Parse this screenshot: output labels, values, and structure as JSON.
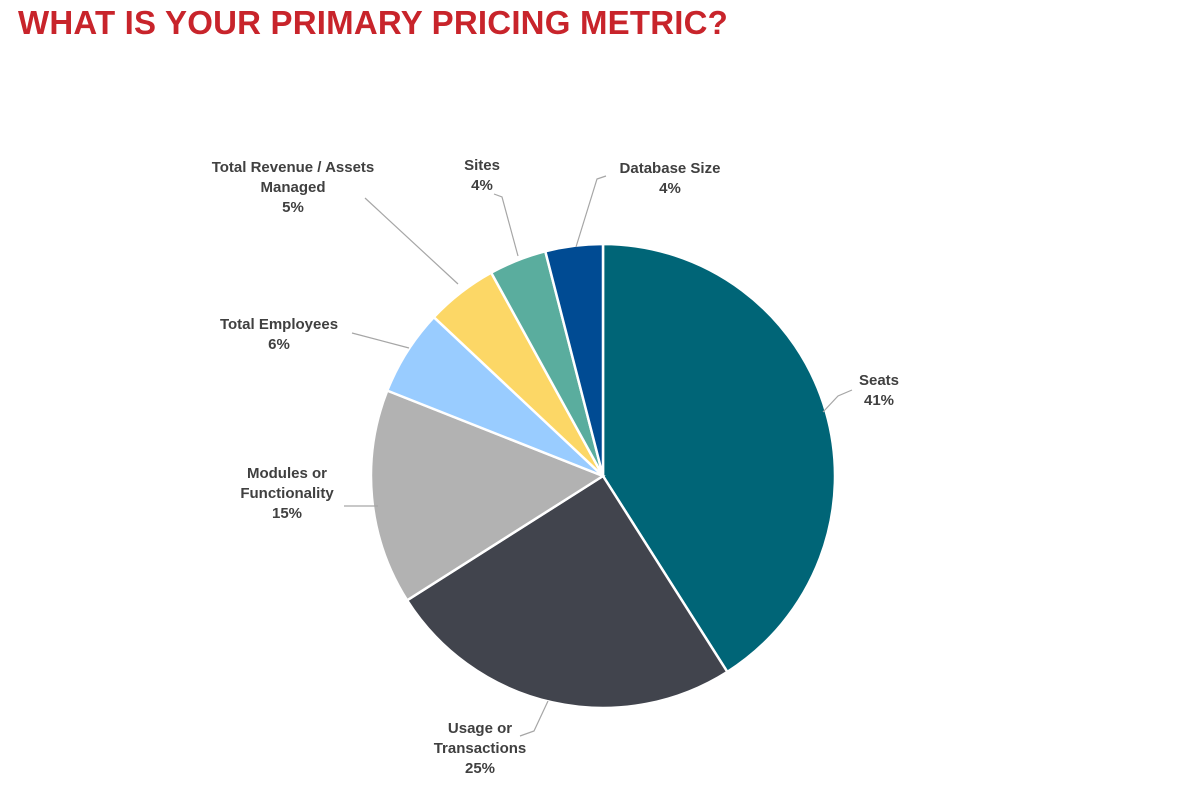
{
  "page": {
    "title": "WHAT IS YOUR PRIMARY PRICING METRIC?",
    "title_color": "#c8242b"
  },
  "chart_data": {
    "type": "pie",
    "title": "",
    "legend": "none",
    "slices": [
      {
        "name": "Seats",
        "name_lines": [
          "Seats"
        ],
        "value": 41,
        "value_label": "41%",
        "color": "#006577"
      },
      {
        "name": "Usage or Transactions",
        "name_lines": [
          "Usage or",
          "Transactions"
        ],
        "value": 25,
        "value_label": "25%",
        "color": "#41444d"
      },
      {
        "name": "Modules or Functionality",
        "name_lines": [
          "Modules or",
          "Functionality"
        ],
        "value": 15,
        "value_label": "15%",
        "color": "#b2b2b2"
      },
      {
        "name": "Total Employees",
        "name_lines": [
          "Total Employees"
        ],
        "value": 6,
        "value_label": "6%",
        "color": "#99ccff"
      },
      {
        "name": "Total Revenue / Assets Managed",
        "name_lines": [
          "Total Revenue / Assets",
          "Managed"
        ],
        "value": 5,
        "value_label": "5%",
        "color": "#fcd766"
      },
      {
        "name": "Sites",
        "name_lines": [
          "Sites"
        ],
        "value": 4,
        "value_label": "4%",
        "color": "#5aad9e"
      },
      {
        "name": "Database Size",
        "name_lines": [
          "Database Size"
        ],
        "value": 4,
        "value_label": "4%",
        "color": "#004b93"
      }
    ]
  }
}
